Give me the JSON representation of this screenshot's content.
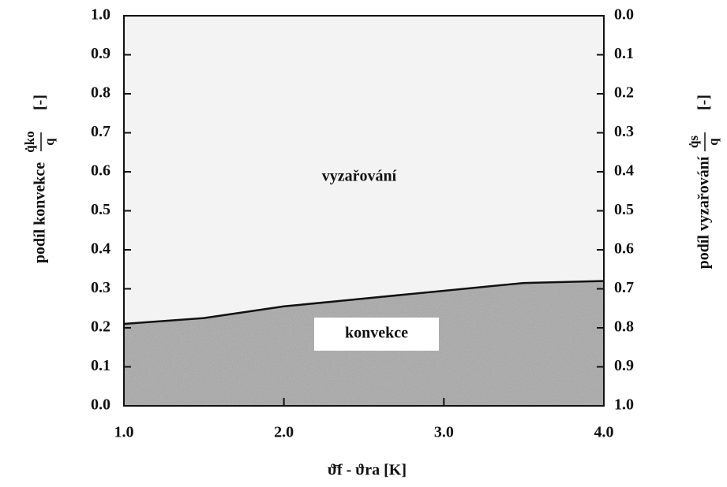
{
  "chart_data": {
    "type": "area",
    "xlabel": "ϑ̄f - ϑra  [K]",
    "ylabel": "podíl konvekce",
    "ylabel_numerator": "q̇ko",
    "ylabel_denominator": "q",
    "ylabel_unit": "[-]",
    "y2label": "podíl vyzařování",
    "y2label_numerator": "q̇s",
    "y2label_denominator": "q",
    "y2label_unit": "[-]",
    "annotations": [
      "vyzařování",
      "konvekce"
    ],
    "x": [
      1.0,
      1.5,
      2.0,
      2.5,
      3.0,
      3.5,
      4.0
    ],
    "values": [
      0.21,
      0.225,
      0.255,
      0.275,
      0.295,
      0.315,
      0.32
    ],
    "color": "#a8a8a8",
    "background_color": "#f3f3f3",
    "xlim": [
      1.0,
      4.0
    ],
    "xticks": [
      {
        "value": 1,
        "label": "1.0"
      },
      {
        "value": 2,
        "label": "2.0"
      },
      {
        "value": 3,
        "label": "3.0"
      },
      {
        "value": 4,
        "label": "4.0"
      }
    ],
    "ylim": [
      0,
      1
    ],
    "yticks": [
      {
        "value": 0,
        "label": "0.0"
      },
      0.1,
      0.2,
      0.3,
      0.4,
      0.5,
      0.6,
      0.7,
      0.8,
      0.9,
      {
        "value": 1,
        "label": "1.0"
      }
    ],
    "y2lim": [
      1,
      0
    ],
    "y2ticks": [
      {
        "value": 0,
        "label": "0.0"
      },
      0.1,
      0.2,
      0.3,
      0.4,
      0.5,
      0.6,
      0.7,
      0.8,
      0.9,
      {
        "value": 1,
        "label": "1.0"
      }
    ]
  }
}
